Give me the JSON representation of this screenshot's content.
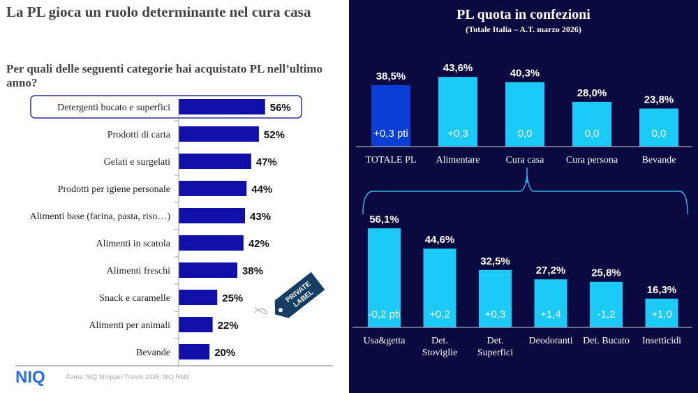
{
  "left": {
    "title": "La PL gioca un ruolo determinante nel cura casa",
    "question": "Per quali delle seguenti categorie hai acquistato PL nell’ultimo anno?",
    "tag_line1": "PRIVATE",
    "tag_line2": "LABEL",
    "source": "Fonte: NIQ Shopper Trends 2025; NIQ RMS",
    "logo": "NIQ"
  },
  "right": {
    "title": "PL quota in confezioni",
    "subtitle": "(Totale Italia – A.T. marzo 2026)"
  },
  "chart_data": [
    {
      "type": "bar",
      "orientation": "horizontal",
      "categories": [
        "Detergenti bucato e superfici",
        "Prodotti di carta",
        "Gelati e surgelati",
        "Prodotti per igiene personale",
        "Alimenti base (farina, pasta, riso…)",
        "Alimenti in scatola",
        "Alimenti freschi",
        "Snack e caramelle",
        "Alimenti per animali",
        "Bevande"
      ],
      "values": [
        56,
        52,
        47,
        44,
        43,
        42,
        38,
        25,
        22,
        20
      ],
      "labels": [
        "56%",
        "52%",
        "47%",
        "44%",
        "43%",
        "42%",
        "38%",
        "25%",
        "22%",
        "20%"
      ],
      "highlighted": "Detergenti bucato e superfici",
      "color": "#1010a8"
    },
    {
      "type": "bar",
      "categories": [
        "TOTALE PL",
        "Alimentare",
        "Cura casa",
        "Cura persona",
        "Bevande"
      ],
      "values": [
        38.5,
        43.6,
        40.3,
        28.0,
        23.8
      ],
      "labels": [
        "38,5%",
        "43,6%",
        "40,3%",
        "28,0%",
        "23,8%"
      ],
      "change_labels": [
        "+0,3 pti",
        "+0,3",
        "0,0",
        "0,0",
        "0,0"
      ],
      "colors": [
        "#0a3fd6",
        "#1ccaf8",
        "#1ccaf8",
        "#1ccaf8",
        "#1ccaf8"
      ]
    },
    {
      "type": "bar",
      "categories": [
        "Usa&getta",
        "Det. Stoviglie",
        "Det. Superfici",
        "Deodoranti",
        "Det. Bucato",
        "Insetticidi"
      ],
      "values": [
        56.1,
        44.6,
        32.5,
        27.2,
        25.8,
        16.3
      ],
      "labels": [
        "56,1%",
        "44,6%",
        "32,5%",
        "27,2%",
        "25,8%",
        "16,3%"
      ],
      "change_labels": [
        "-0,2 pti",
        "+0,2",
        "+0,3",
        "+1,4",
        "-1,2",
        "+1,0"
      ],
      "color": "#1ccaf8"
    }
  ]
}
